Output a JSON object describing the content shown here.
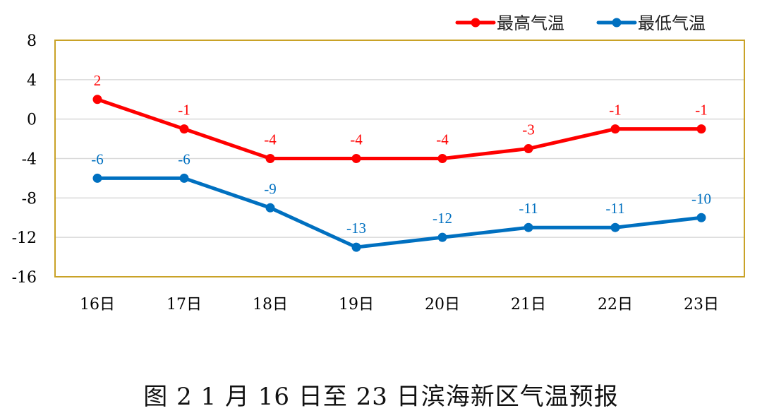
{
  "caption": "图 2   1 月 16 日至 23 日滨海新区气温预报",
  "chart_data": {
    "type": "line",
    "categories": [
      "16日",
      "17日",
      "18日",
      "19日",
      "20日",
      "21日",
      "22日",
      "23日"
    ],
    "series": [
      {
        "name": "最高气温",
        "color": "#ff0000",
        "values": [
          2,
          -1,
          -4,
          -4,
          -4,
          -3,
          -1,
          -1
        ]
      },
      {
        "name": "最低气温",
        "color": "#0070c0",
        "values": [
          -6,
          -6,
          -9,
          -13,
          -12,
          -11,
          -11,
          -10
        ]
      }
    ],
    "ylim": [
      -16,
      8
    ],
    "yticks": [
      8,
      4,
      0,
      -4,
      -8,
      -12,
      -16
    ],
    "grid": true,
    "legend_position": "top-right",
    "plot_border_color": "#c9a227",
    "grid_color": "#d9d9d9",
    "data_labels": true
  }
}
